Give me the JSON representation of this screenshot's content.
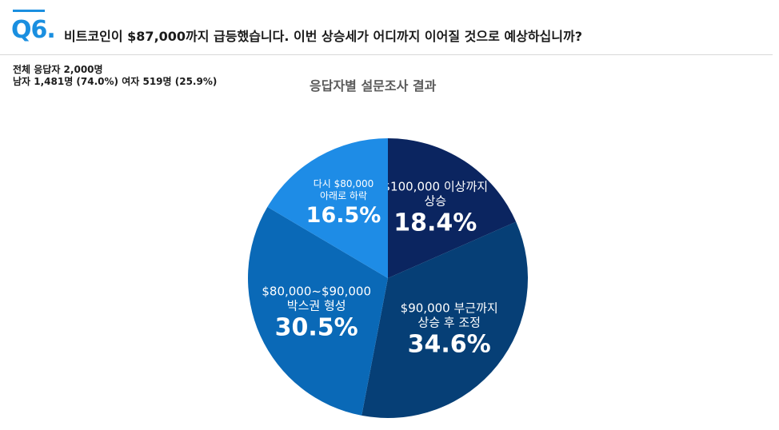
{
  "question": {
    "number": "Q6.",
    "text": "비트코인이 $87,000까지 급등했습니다. 이번 상승세가 어디까지 이어질 것으로 예상하십니까?"
  },
  "respondents": {
    "total": "전체 응답자 2,000명",
    "breakdown": "남자 1,481명 (74.0%) 여자 519명 (25.9%)"
  },
  "chart_data": {
    "type": "pie",
    "title": "응답자별 설문조사 결과",
    "slices": [
      {
        "label": [
          "$100,000 이상까지",
          "상승"
        ],
        "value": 18.4,
        "value_label": "18.4%",
        "color": "#0b2560"
      },
      {
        "label": [
          "$90,000 부근까지",
          "상승 후 조정"
        ],
        "value": 34.6,
        "value_label": "34.6%",
        "color": "#063f76"
      },
      {
        "label": [
          "$80,000~$90,000",
          "박스권 형성"
        ],
        "value": 30.5,
        "value_label": "30.5%",
        "color": "#0a69b7"
      },
      {
        "label": [
          "다시 $80,000",
          "아래로 하락"
        ],
        "value": 16.5,
        "value_label": "16.5%",
        "color": "#1e8ce6"
      }
    ]
  }
}
